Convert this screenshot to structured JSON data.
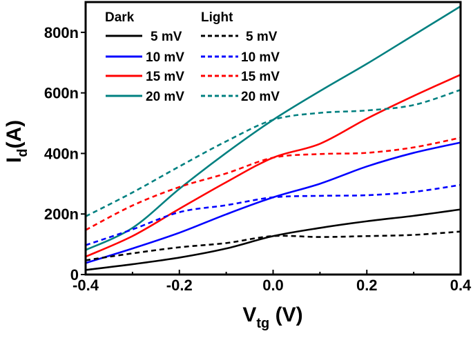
{
  "chart_data": {
    "type": "line",
    "xlabel": "V",
    "xlabel_sub": "tg",
    "xlabel_unit": " (V)",
    "ylabel": "I",
    "ylabel_sub": "d",
    "ylabel_unit": "(A)",
    "xlim": [
      -0.4,
      0.4
    ],
    "ylim": [
      0,
      900
    ],
    "y_unit": "nA",
    "grid": false,
    "legend_position": "top-left",
    "legend_headers": {
      "dark": "Dark",
      "light": "Light"
    },
    "x_ticks": [
      -0.4,
      -0.2,
      0.0,
      0.2,
      0.4
    ],
    "x_tick_labels": [
      "-0.4",
      "-0.2",
      "0.0",
      "0.2",
      "0.4"
    ],
    "y_ticks": [
      0,
      200,
      400,
      600,
      800
    ],
    "y_tick_labels": [
      "0",
      "200n",
      "400n",
      "600n",
      "800n"
    ],
    "x": [
      -0.4,
      -0.3,
      -0.2,
      -0.1,
      0.0,
      0.1,
      0.2,
      0.3,
      0.4
    ],
    "series": [
      {
        "name": "5 mV",
        "group": "Dark",
        "color": "#000000",
        "dash": false,
        "values": [
          15,
          34,
          56,
          86,
          127,
          154,
          176,
          194,
          215
        ]
      },
      {
        "name": "10 mV",
        "group": "Dark",
        "color": "#0000ff",
        "dash": false,
        "values": [
          38,
          86,
          138,
          199,
          255,
          300,
          357,
          402,
          436
        ]
      },
      {
        "name": "15 mV",
        "group": "Dark",
        "color": "#ff0000",
        "dash": false,
        "values": [
          59,
          127,
          217,
          305,
          386,
          432,
          515,
          590,
          660
        ]
      },
      {
        "name": "20 mV",
        "group": "Dark",
        "color": "#008080",
        "dash": false,
        "values": [
          81,
          154,
          283,
          402,
          511,
          606,
          696,
          791,
          886
        ]
      },
      {
        "name": "5 mV",
        "group": "Light",
        "color": "#000000",
        "dash": true,
        "values": [
          47,
          70,
          90,
          104,
          127,
          124,
          127,
          131,
          142
        ]
      },
      {
        "name": "10 mV",
        "group": "Light",
        "color": "#0000ff",
        "dash": true,
        "values": [
          97,
          149,
          206,
          229,
          255,
          260,
          262,
          273,
          296
        ]
      },
      {
        "name": "15 mV",
        "group": "Light",
        "color": "#ff0000",
        "dash": true,
        "values": [
          147,
          228,
          289,
          334,
          386,
          398,
          402,
          420,
          452
        ]
      },
      {
        "name": "20 mV",
        "group": "Light",
        "color": "#008080",
        "dash": true,
        "values": [
          192,
          271,
          357,
          440,
          511,
          534,
          542,
          560,
          610
        ]
      }
    ]
  }
}
